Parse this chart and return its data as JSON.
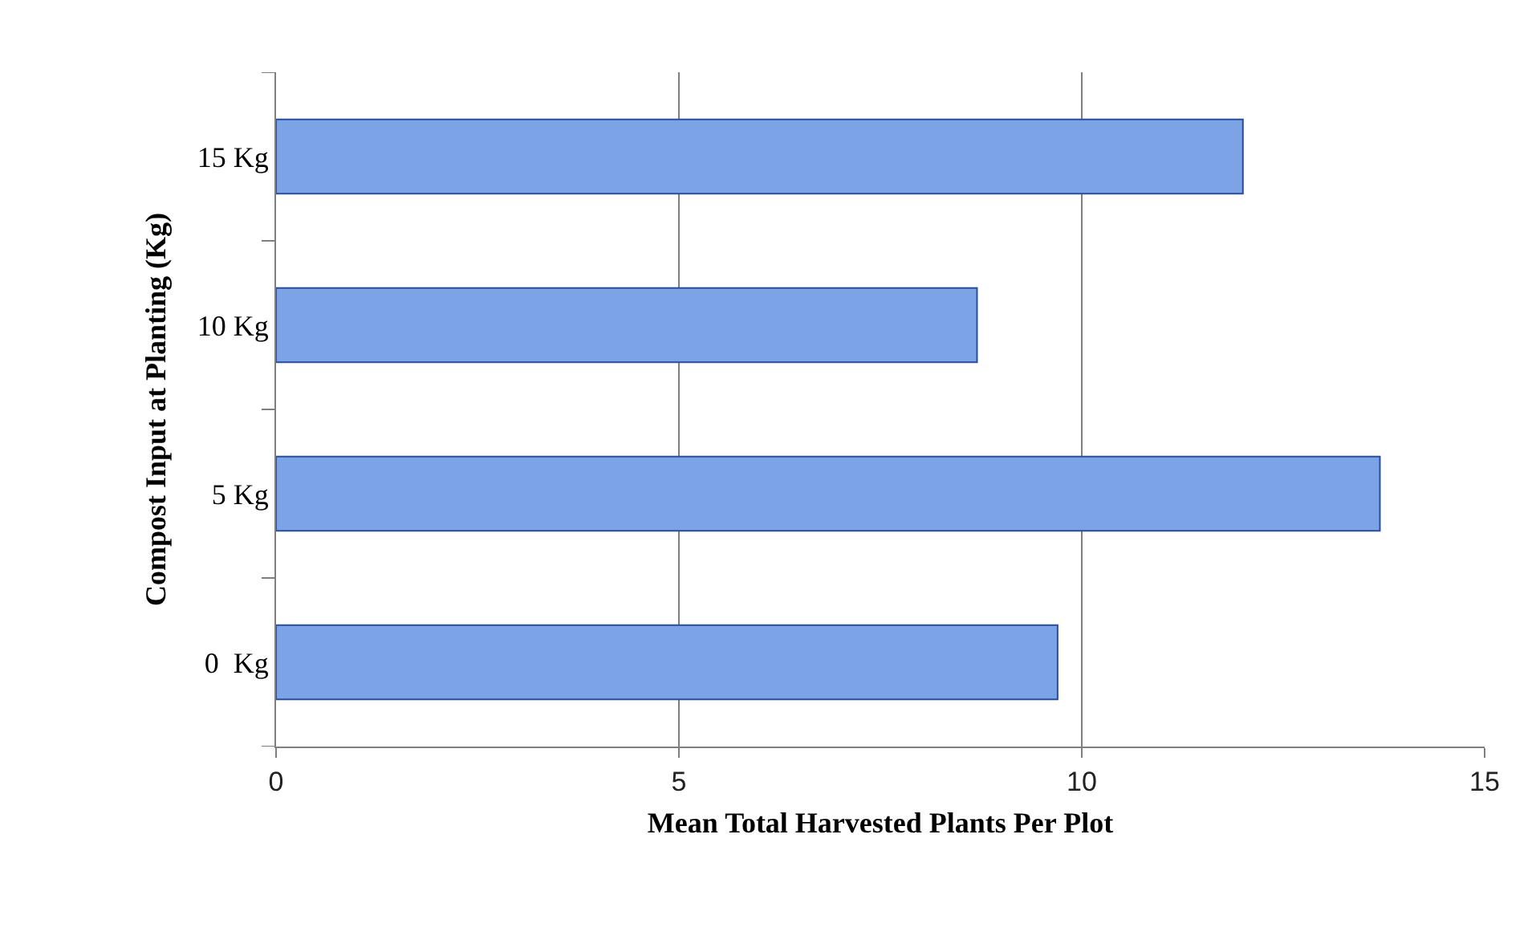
{
  "chart_data": {
    "type": "bar",
    "orientation": "horizontal",
    "categories": [
      "15 Kg",
      "10 Kg",
      "5 Kg",
      "0  Kg"
    ],
    "values": [
      12.0,
      8.7,
      13.7,
      9.7
    ],
    "color": "#7ba3e6",
    "xlim": [
      0,
      15
    ],
    "xticks": [
      0,
      5,
      10,
      15
    ],
    "grid": "x",
    "xlabel": "Mean Total Harvested Plants Per Plot",
    "ylabel": "Compost Input at Planting (Kg)"
  }
}
